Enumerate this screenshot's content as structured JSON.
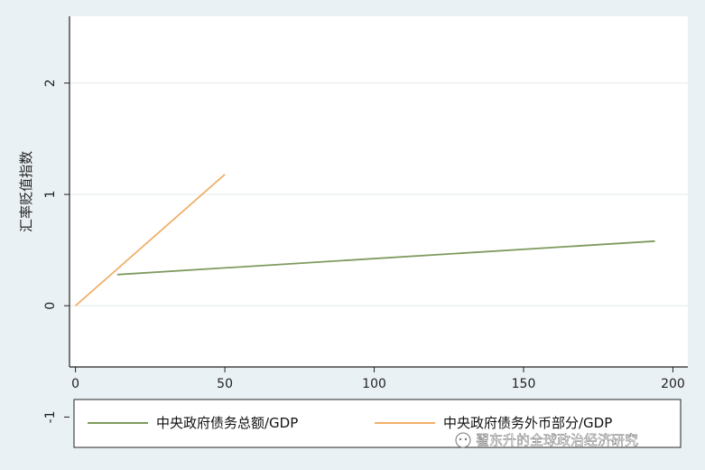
{
  "chart_data": {
    "type": "line",
    "title": "",
    "xlabel": "",
    "ylabel": "汇率贬值指数",
    "xlim": [
      -2,
      205
    ],
    "ylim": [
      -0.55,
      2.6
    ],
    "xticks": [
      0,
      50,
      100,
      150,
      200
    ],
    "yticks": [
      -1,
      0,
      1,
      2
    ],
    "grid": true,
    "legend_position": "bottom",
    "series": [
      {
        "name": "中央政府债务总额/GDP",
        "color": "#7f9a5e",
        "points": [
          [
            14,
            0.28
          ],
          [
            194,
            0.58
          ]
        ]
      },
      {
        "name": "中央政府债务外币部分/GDP",
        "color": "#f0b06a",
        "points": [
          [
            0,
            0.0
          ],
          [
            50,
            1.18
          ]
        ]
      }
    ]
  },
  "watermark": {
    "text": "翟东升的全球政治经济研究"
  },
  "colors": {
    "background": "#eaf1f4",
    "plot_area": "#ffffff",
    "grid": "#e3e9ec",
    "axis": "#222222"
  }
}
